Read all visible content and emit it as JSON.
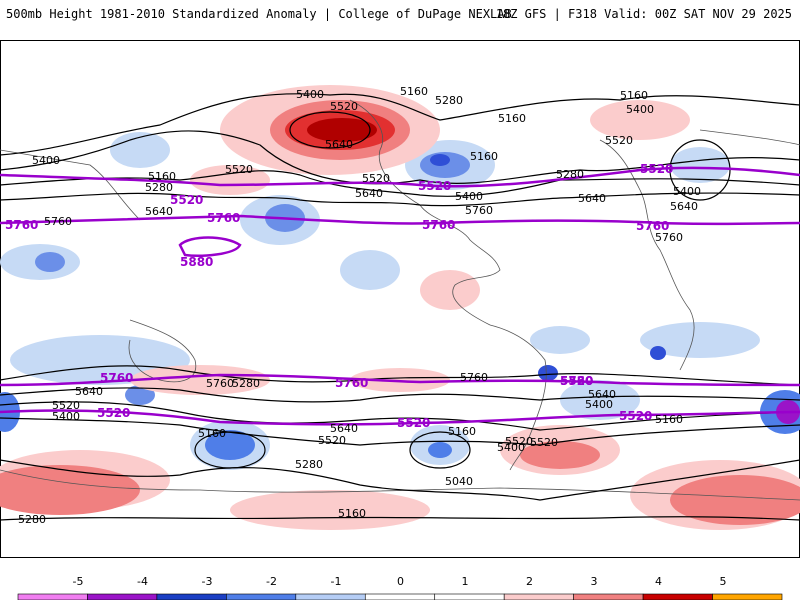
{
  "header": {
    "title_left": "500mb Height 1981-2010 Standardized Anomaly | College of DuPage NEXLAB",
    "title_right": "18Z GFS | F318 Valid: 00Z SAT NOV 29 2025"
  },
  "map": {
    "black_contour_labels": [
      "5400",
      "5160",
      "5280",
      "5520",
      "5160",
      "5400",
      "5520",
      "5640",
      "5160",
      "5280",
      "5640",
      "5520",
      "5640",
      "5160",
      "5280",
      "5400",
      "5520",
      "5640",
      "5760",
      "5400",
      "5160",
      "5760",
      "5640",
      "5400",
      "5760",
      "5520",
      "5400",
      "5640",
      "5520",
      "5160",
      "5280",
      "5640",
      "5520",
      "5160",
      "5040",
      "5160",
      "5280",
      "5400",
      "5520",
      "5640",
      "5400",
      "5160",
      "5280",
      "5760",
      "5760"
    ],
    "purple_contour_labels": [
      "5520",
      "5760",
      "5880",
      "5520",
      "5760",
      "5520",
      "5760",
      "5760",
      "5760",
      "5760",
      "5520",
      "5520",
      "5520",
      "5520",
      "5760"
    ],
    "colors": {
      "land_outline": "#555555",
      "black_contour": "#000000",
      "purple_contour": "#9900cc",
      "anom_neg1": "#c6daf5",
      "anom_neg2": "#6b8fe8",
      "anom_neg3": "#2f4fd6",
      "anom_neg4": "#9a14c8",
      "anom_pos1": "#fbcccc",
      "anom_pos2": "#f08080",
      "anom_pos3": "#e23030",
      "anom_pos4": "#b00000"
    }
  },
  "colorbar": {
    "ticks": [
      "-5",
      "-4",
      "-3",
      "-2",
      "-1",
      "0",
      "1",
      "2",
      "3",
      "4",
      "5"
    ],
    "colors": [
      "#f07df0",
      "#9a14c8",
      "#1b3fc4",
      "#4f7ee8",
      "#b5cdf5",
      "#ffffff",
      "#ffffff",
      "#fbcccc",
      "#f08080",
      "#c80000",
      "#ffa500"
    ]
  }
}
